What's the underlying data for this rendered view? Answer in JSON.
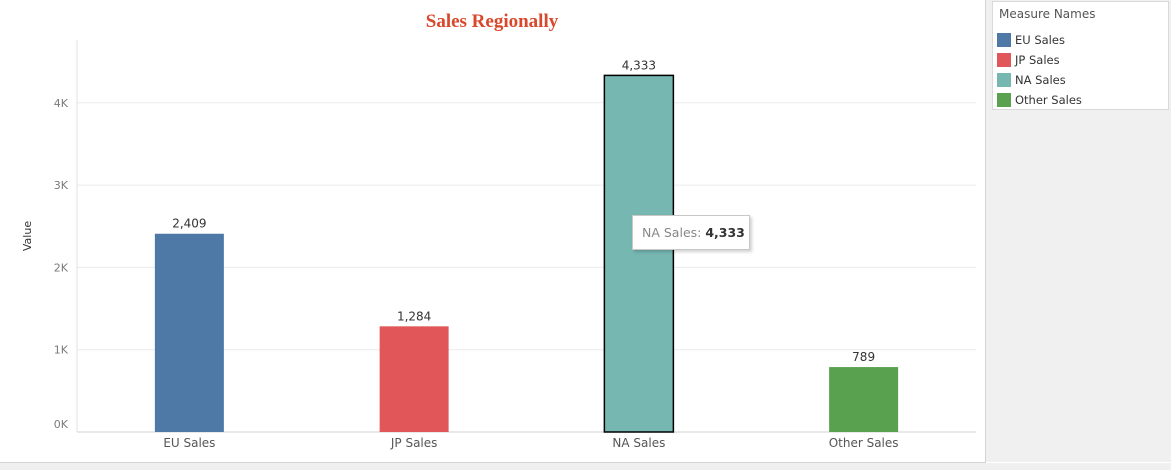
{
  "chart_data": {
    "type": "bar",
    "title": "Sales Regionally",
    "xlabel": "",
    "ylabel": "Value",
    "categories": [
      "EU Sales",
      "JP Sales",
      "NA Sales",
      "Other Sales"
    ],
    "values": [
      2409,
      1284,
      4333,
      789
    ],
    "data_labels": [
      "2,409",
      "1,284",
      "4,333",
      "789"
    ],
    "colors": [
      "#4e79a7",
      "#e15759",
      "#76b7b2",
      "#59a14f"
    ],
    "yticks": [
      0,
      1000,
      2000,
      3000,
      4000
    ],
    "ytick_labels": [
      "0K",
      "1K",
      "2K",
      "3K",
      "4K"
    ],
    "ylim": [
      0,
      4700
    ],
    "grid": true,
    "highlighted_category": "NA Sales",
    "title_color": "#d9482b"
  },
  "legend": {
    "title": "Measure Names",
    "placement": "top-right",
    "items": [
      {
        "label": "EU Sales",
        "color": "#4e79a7"
      },
      {
        "label": "JP Sales",
        "color": "#e15759"
      },
      {
        "label": "NA Sales",
        "color": "#76b7b2"
      },
      {
        "label": "Other Sales",
        "color": "#59a14f"
      }
    ]
  },
  "tooltip": {
    "label": "NA Sales:",
    "value": "4,333"
  }
}
